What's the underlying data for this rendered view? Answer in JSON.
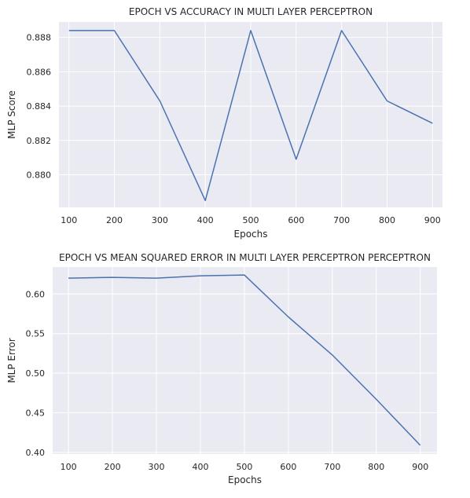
{
  "chart_data": [
    {
      "type": "line",
      "title": "EPOCH VS ACCURACY IN MULTI LAYER PERCEPTRON",
      "xlabel": "Epochs",
      "ylabel": "MLP Score",
      "x": [
        100,
        200,
        300,
        400,
        500,
        600,
        700,
        800,
        900
      ],
      "series": [
        {
          "values": [
            0.8884,
            0.8884,
            0.8843,
            0.8785,
            0.8884,
            0.8809,
            0.8884,
            0.8843,
            0.883
          ]
        }
      ],
      "xticks": [
        100,
        200,
        300,
        400,
        500,
        600,
        700,
        800,
        900
      ],
      "yticks": [
        "0.880",
        "0.882",
        "0.884",
        "0.886",
        "0.888"
      ],
      "xlim": [
        78,
        922
      ],
      "ylim": [
        0.8781,
        0.8889
      ],
      "grid": true,
      "color": "#4c72b0"
    },
    {
      "type": "line",
      "title": "EPOCH VS MEAN SQUARED ERROR IN MULTI LAYER PERCEPTRON PERCEPTRON",
      "xlabel": "Epochs",
      "ylabel": "MLP Error",
      "x": [
        100,
        200,
        300,
        400,
        500,
        600,
        700,
        800,
        900
      ],
      "series": [
        {
          "values": [
            0.62,
            0.621,
            0.62,
            0.623,
            0.624,
            0.571,
            0.523,
            0.467,
            0.409
          ]
        }
      ],
      "xticks": [
        100,
        200,
        300,
        400,
        500,
        600,
        700,
        800,
        900
      ],
      "yticks": [
        "0.40",
        "0.45",
        "0.50",
        "0.55",
        "0.60"
      ],
      "xlim": [
        64,
        938
      ],
      "ylim": [
        0.398,
        0.634
      ],
      "grid": true,
      "color": "#4c72b0"
    }
  ]
}
